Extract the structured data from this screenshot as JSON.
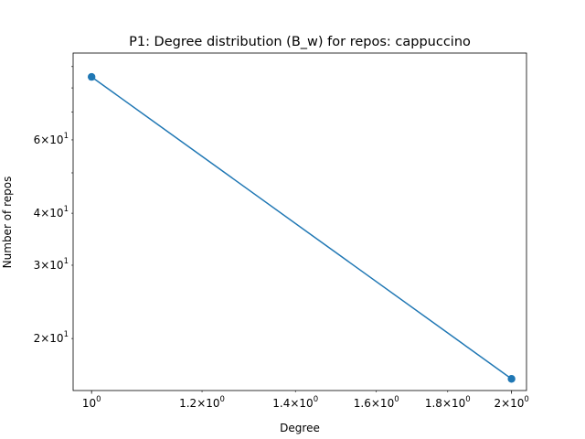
{
  "chart_data": {
    "type": "line",
    "title": "P1: Degree distribution (B_w) for repos: cappuccino",
    "xlabel": "Degree",
    "ylabel": "Number of repos",
    "xscale": "log",
    "yscale": "log",
    "xlim": [
      0.97,
      2.05
    ],
    "ylim": [
      15.0,
      97.0
    ],
    "grid": false,
    "legend": "none",
    "series": [
      {
        "x": [
          1,
          2
        ],
        "y": [
          85,
          16
        ],
        "color": "#1f77b4",
        "marker": "circle"
      }
    ],
    "x_major_ticks": [
      {
        "value": 1,
        "mantissa": "",
        "exponent": "0"
      },
      {
        "value": 2,
        "mantissa": "2",
        "exponent": "0"
      }
    ],
    "x_minor_ticks": [
      {
        "value": 1.2,
        "mantissa": "1.2",
        "exponent": "0"
      },
      {
        "value": 1.4,
        "mantissa": "1.4",
        "exponent": "0"
      },
      {
        "value": 1.6,
        "mantissa": "1.6",
        "exponent": "0"
      },
      {
        "value": 1.8,
        "mantissa": "1.8",
        "exponent": "0"
      }
    ],
    "y_minor_ticks": [
      {
        "value": 20,
        "mantissa": "2",
        "exponent": "1"
      },
      {
        "value": 30,
        "mantissa": "3",
        "exponent": "1"
      },
      {
        "value": 40,
        "mantissa": "4",
        "exponent": "1"
      },
      {
        "value": 60,
        "mantissa": "6",
        "exponent": "1"
      }
    ],
    "y_unlabeled_ticks": [
      50,
      70,
      80,
      90
    ]
  }
}
